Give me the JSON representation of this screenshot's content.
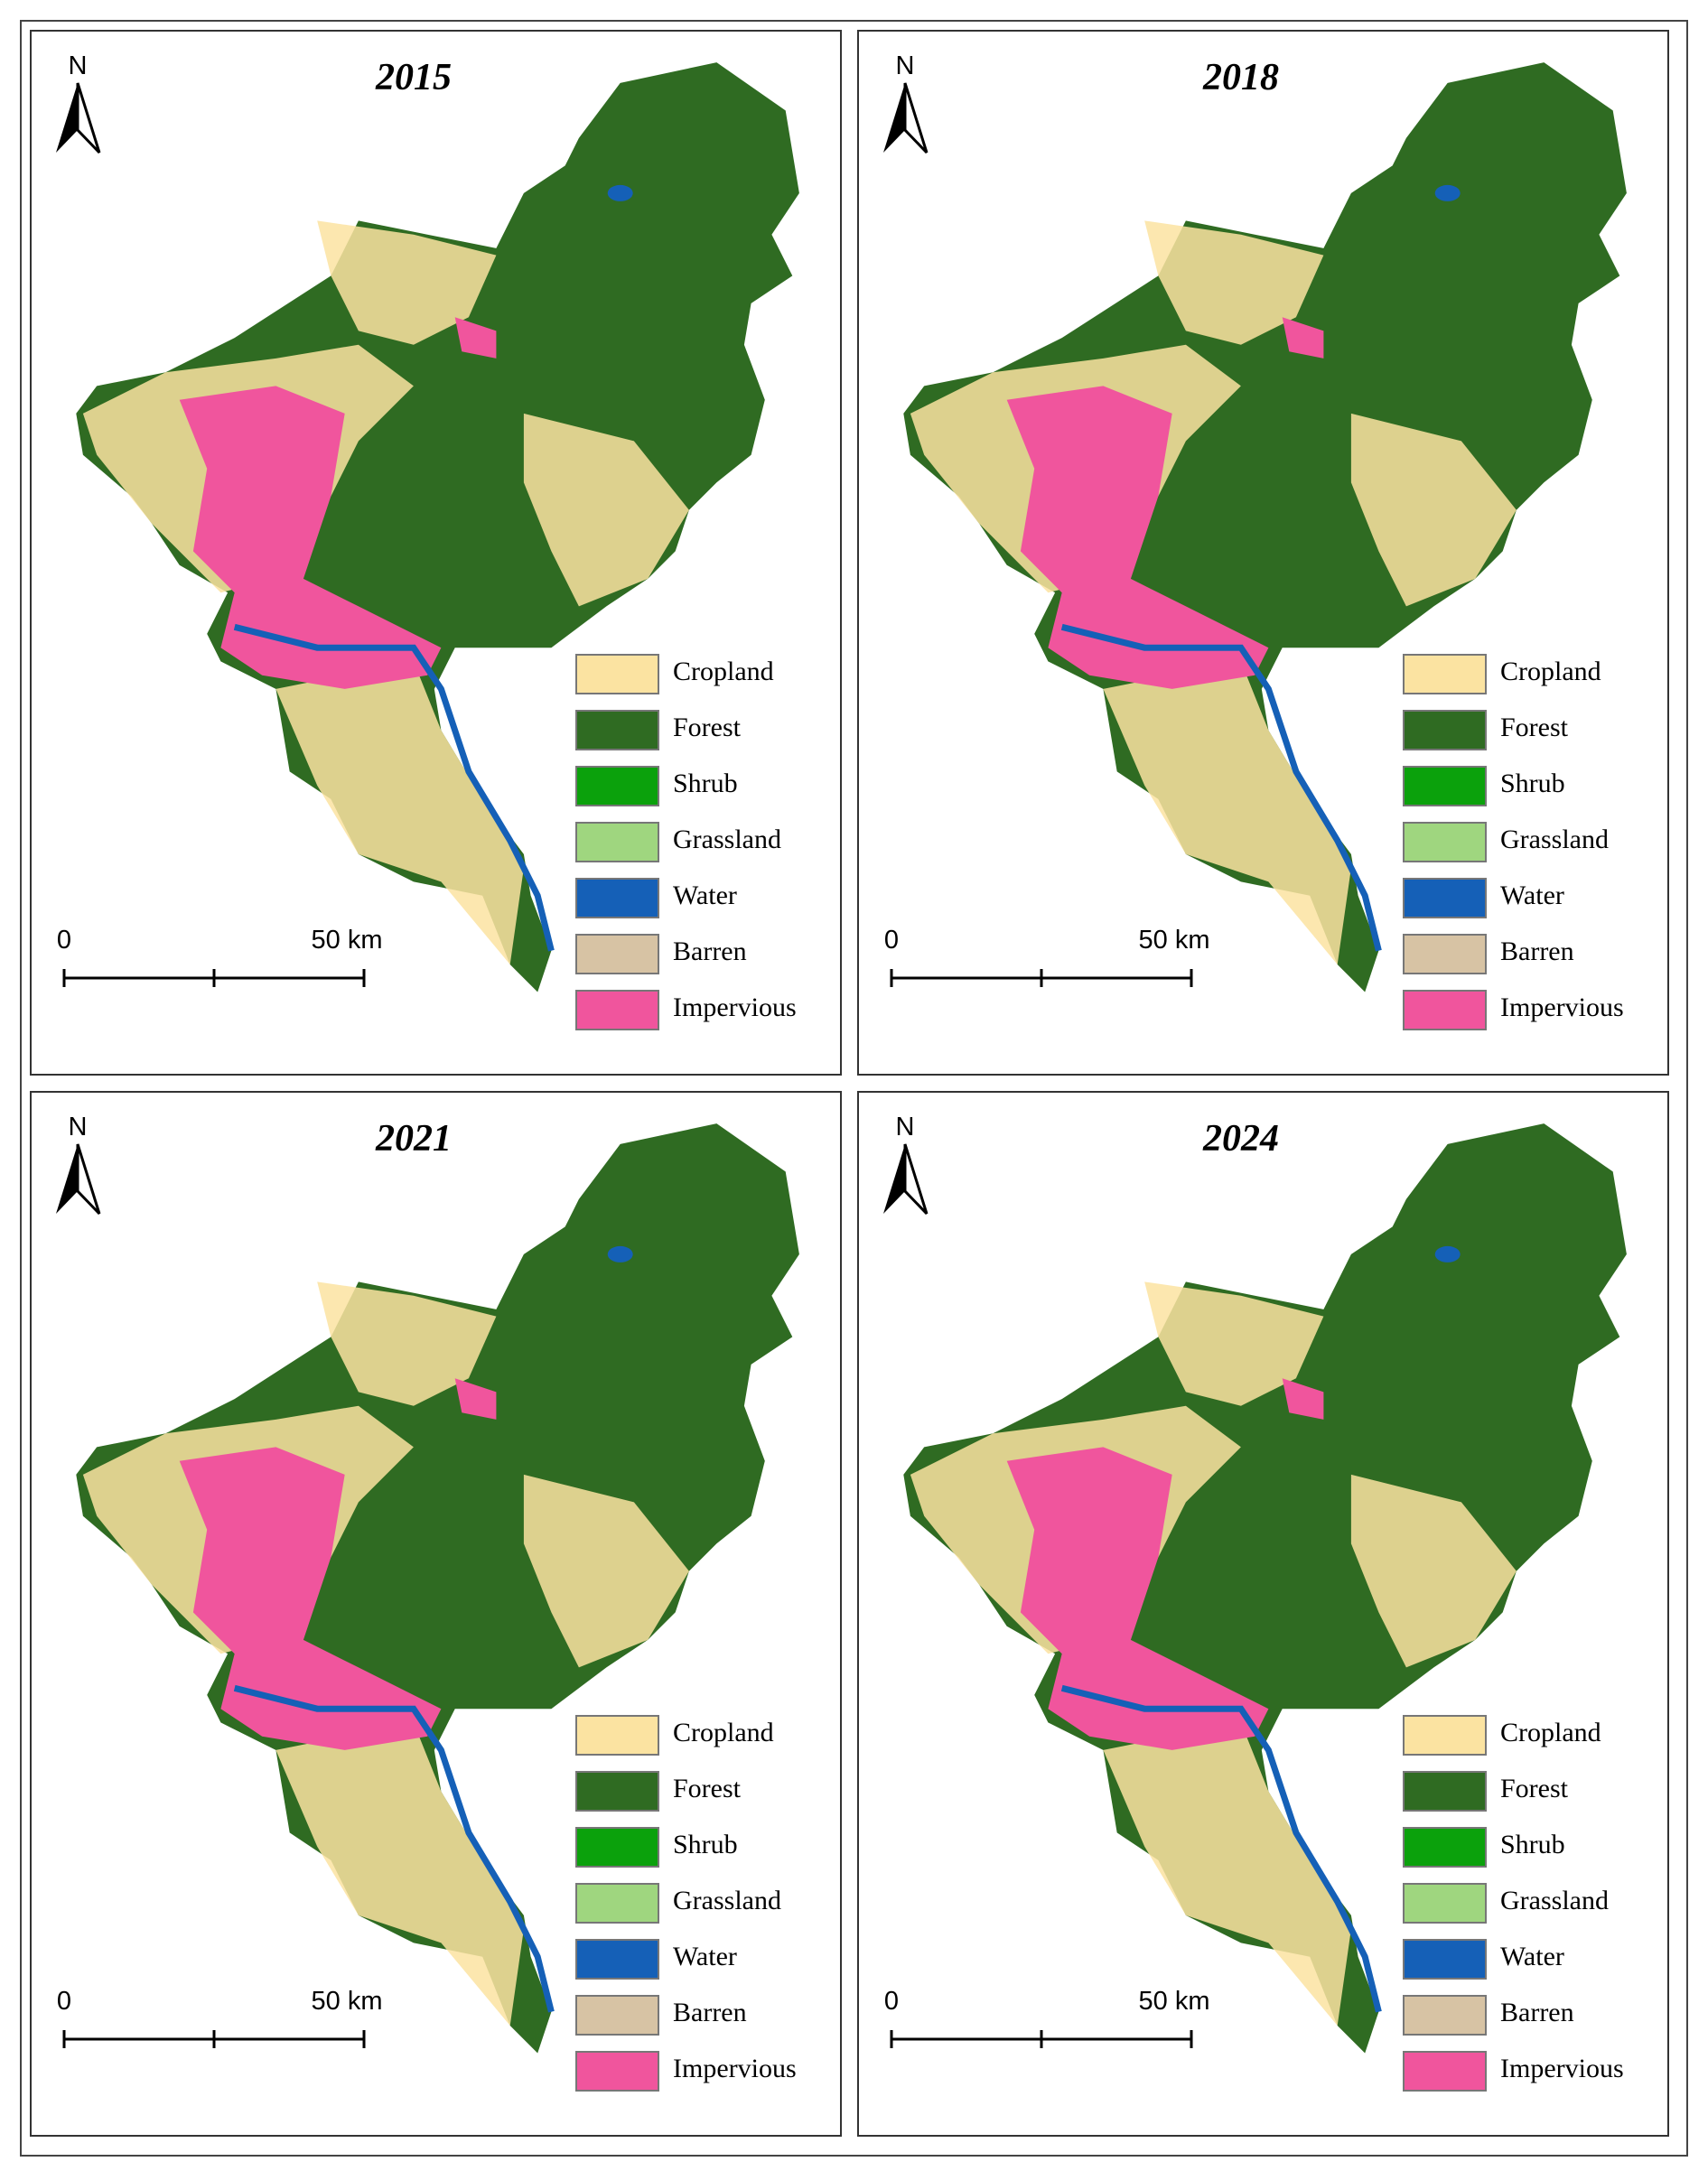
{
  "panels": [
    {
      "title": "2015",
      "north": "N",
      "scale_bar": {
        "start": "0",
        "end": "50 km"
      },
      "legend": [
        {
          "label": "Cropland",
          "color": "#fbe3a1"
        },
        {
          "label": "Forest",
          "color": "#2f6b22"
        },
        {
          "label": "Shrub",
          "color": "#0ba10c"
        },
        {
          "label": "Grassland",
          "color": "#9fd67f"
        },
        {
          "label": "Water",
          "color": "#1560b7"
        },
        {
          "label": "Barren",
          "color": "#d7c3a4"
        },
        {
          "label": "Impervious",
          "color": "#f0559d"
        }
      ]
    },
    {
      "title": "2018",
      "north": "N",
      "scale_bar": {
        "start": "0",
        "end": "50 km"
      },
      "legend": [
        {
          "label": "Cropland",
          "color": "#fbe3a1"
        },
        {
          "label": "Forest",
          "color": "#2f6b22"
        },
        {
          "label": "Shrub",
          "color": "#0ba10c"
        },
        {
          "label": "Grassland",
          "color": "#9fd67f"
        },
        {
          "label": "Water",
          "color": "#1560b7"
        },
        {
          "label": "Barren",
          "color": "#d7c3a4"
        },
        {
          "label": "Impervious",
          "color": "#f0559d"
        }
      ]
    },
    {
      "title": "2021",
      "north": "N",
      "scale_bar": {
        "start": "0",
        "end": "50 km"
      },
      "legend": [
        {
          "label": "Cropland",
          "color": "#fbe3a1"
        },
        {
          "label": "Forest",
          "color": "#2f6b22"
        },
        {
          "label": "Shrub",
          "color": "#0ba10c"
        },
        {
          "label": "Grassland",
          "color": "#9fd67f"
        },
        {
          "label": "Water",
          "color": "#1560b7"
        },
        {
          "label": "Barren",
          "color": "#d7c3a4"
        },
        {
          "label": "Impervious",
          "color": "#f0559d"
        }
      ]
    },
    {
      "title": "2024",
      "north": "N",
      "scale_bar": {
        "start": "0",
        "end": "50 km"
      },
      "legend": [
        {
          "label": "Cropland",
          "color": "#fbe3a1"
        },
        {
          "label": "Forest",
          "color": "#2f6b22"
        },
        {
          "label": "Shrub",
          "color": "#0ba10c"
        },
        {
          "label": "Grassland",
          "color": "#9fd67f"
        },
        {
          "label": "Water",
          "color": "#1560b7"
        },
        {
          "label": "Barren",
          "color": "#d7c3a4"
        },
        {
          "label": "Impervious",
          "color": "#f0559d"
        }
      ]
    }
  ]
}
